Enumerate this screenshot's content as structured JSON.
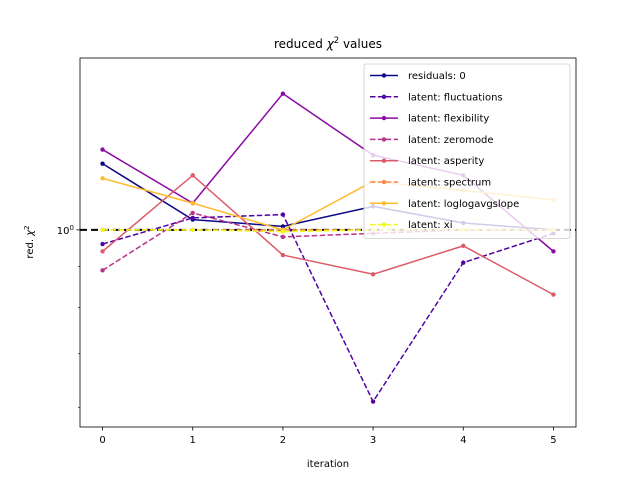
{
  "chart_data": {
    "type": "line",
    "title_prefix": "reduced ",
    "title_symbol": "χ",
    "title_exp": "2",
    "title_suffix": " values",
    "xlabel": "iteration",
    "ylabel_prefix": "red. ",
    "ylabel_symbol": "χ",
    "ylabel_exp": "2",
    "y_scale": "log",
    "x": [
      0,
      1,
      2,
      3,
      4,
      5
    ],
    "xlim": [
      -0.25,
      5.25
    ],
    "ylim": [
      0.567,
      1.64
    ],
    "x_ticks": [
      "0",
      "1",
      "2",
      "3",
      "4",
      "5"
    ],
    "y_ticks": [
      {
        "value": 1.0,
        "label_base": "10",
        "label_exp": "0"
      }
    ],
    "reference_line": {
      "y": 1.0,
      "style": "dashed",
      "color": "#000000"
    },
    "legend_position": "top-right",
    "series": [
      {
        "name": "residuals: 0",
        "color": "#0d0887",
        "style": "solid",
        "values": [
          1.21,
          1.03,
          1.01,
          1.07,
          1.02,
          1.0
        ]
      },
      {
        "name": "latent: fluctuations",
        "color": "#5302a3",
        "style": "dashed",
        "values": [
          0.96,
          1.035,
          1.045,
          0.61,
          0.91,
          0.99
        ]
      },
      {
        "name": "latent: flexibility",
        "color": "#8b0aa5",
        "style": "solid",
        "values": [
          1.26,
          1.08,
          1.48,
          1.24,
          1.17,
          0.94
        ]
      },
      {
        "name": "latent: zeromode",
        "color": "#b83289",
        "style": "dashed",
        "values": [
          0.89,
          1.05,
          0.98,
          0.99,
          1.0,
          1.0
        ]
      },
      {
        "name": "latent: asperity",
        "color": "#db5c68",
        "style": "solid",
        "values": [
          0.94,
          1.17,
          0.93,
          0.88,
          0.955,
          0.83
        ]
      },
      {
        "name": "latent: spectrum",
        "color": "#f48849",
        "style": "dashed",
        "values": [
          1.0,
          1.0,
          1.0,
          1.0,
          1.0,
          1.0
        ]
      },
      {
        "name": "latent: loglogavgslope",
        "color": "#febc2a",
        "style": "solid",
        "values": [
          1.16,
          1.08,
          1.0,
          1.15,
          1.12,
          1.09
        ]
      },
      {
        "name": "latent: xi",
        "color": "#f0f921",
        "style": "dashed",
        "values": [
          1.0,
          1.0,
          0.995,
          1.0,
          1.0,
          1.0
        ]
      }
    ]
  }
}
